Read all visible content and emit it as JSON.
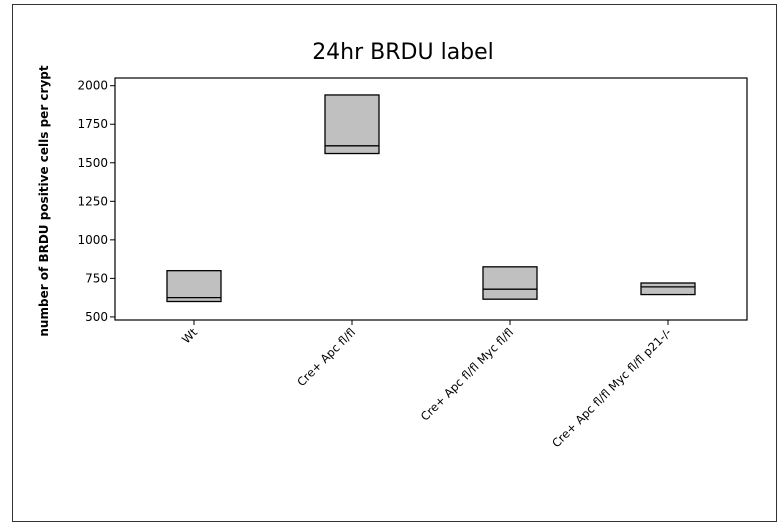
{
  "chart_data": {
    "type": "box",
    "title": "24hr BRDU label",
    "ylabel": "number of BRDU positive cells per crypt",
    "xlabel": "",
    "ylim": [
      480,
      2050
    ],
    "yticks": [
      500,
      750,
      1000,
      1250,
      1500,
      1750,
      2000
    ],
    "categories": [
      "Wt",
      "Cre+ Apc fl/fl",
      "Cre+ Apc fl/fl Myc fl/fl",
      "Cre+ Apc fl/fl Myc fl/fl p21-/-"
    ],
    "boxes": [
      {
        "category": "Wt",
        "q1": 600,
        "median": 625,
        "q3": 800
      },
      {
        "category": "Cre+ Apc fl/fl",
        "q1": 1560,
        "median": 1610,
        "q3": 1940
      },
      {
        "category": "Cre+ Apc fl/fl Myc fl/fl",
        "q1": 615,
        "median": 680,
        "q3": 825
      },
      {
        "category": "Cre+ Apc fl/fl Myc fl/fl p21-/-",
        "q1": 645,
        "median": 695,
        "q3": 720
      }
    ],
    "grid": false,
    "colors": {
      "box_fill": "#c0c0c0",
      "stroke": "#000000"
    }
  }
}
